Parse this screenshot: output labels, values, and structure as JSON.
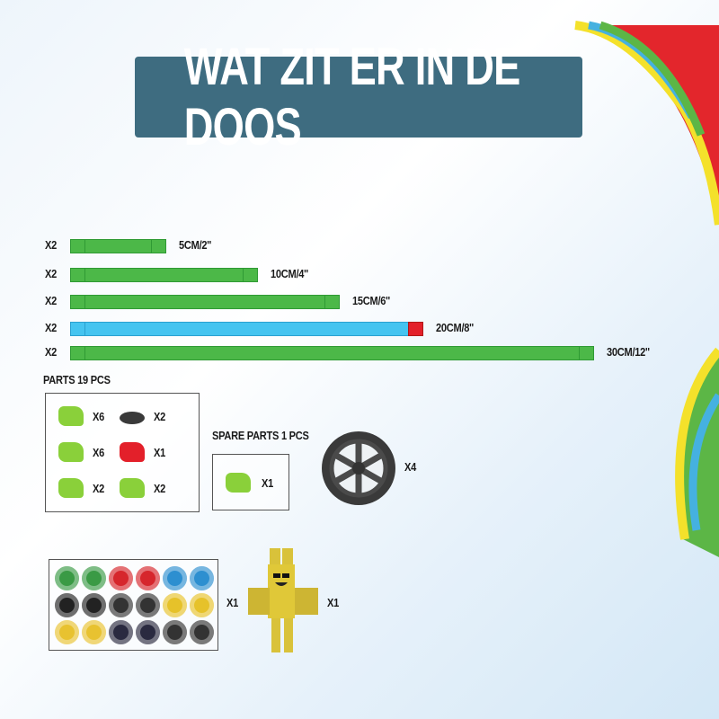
{
  "title": "WAT ZIT ER IN DE DOOS",
  "tracks": [
    {
      "qty": "X2",
      "label": "5CM/2''",
      "color": "#4cb848"
    },
    {
      "qty": "X2",
      "label": "10CM/4''",
      "color": "#4cb848"
    },
    {
      "qty": "X2",
      "label": "15CM/6''",
      "color": "#4cb848"
    },
    {
      "qty": "X2",
      "label": "20CM/8''",
      "color": "#45c4f0",
      "end_color": "#e3202a"
    },
    {
      "qty": "X2",
      "label": "30CM/12''",
      "color": "#4cb848"
    }
  ],
  "parts": {
    "title": "PARTS  19 PCS",
    "items": [
      {
        "qty": "X6",
        "color": "#8ad03a"
      },
      {
        "qty": "X2",
        "color": "#3a3a3a"
      },
      {
        "qty": "X6",
        "color": "#8ad03a"
      },
      {
        "qty": "X1",
        "color": "#e3202a"
      },
      {
        "qty": "X2",
        "color": "#8ad03a"
      },
      {
        "qty": "X2",
        "color": "#8ad03a"
      }
    ]
  },
  "spare": {
    "title": "SPARE PARTS  1 PCS",
    "qty": "X1"
  },
  "wheel": {
    "qty": "X4"
  },
  "stickers": {
    "qty": "X1",
    "colors": [
      "#3a9a45",
      "#3a9a45",
      "#d6262c",
      "#d6262c",
      "#2d8fd0",
      "#2d8fd0",
      "#222",
      "#222",
      "#333",
      "#333",
      "#e6c22a",
      "#e6c22a",
      "#e8c230",
      "#e8c230",
      "#2a2a40",
      "#2a2a40",
      "#333",
      "#333"
    ]
  },
  "figure": {
    "qty": "X1",
    "color": "#d9c23a"
  }
}
